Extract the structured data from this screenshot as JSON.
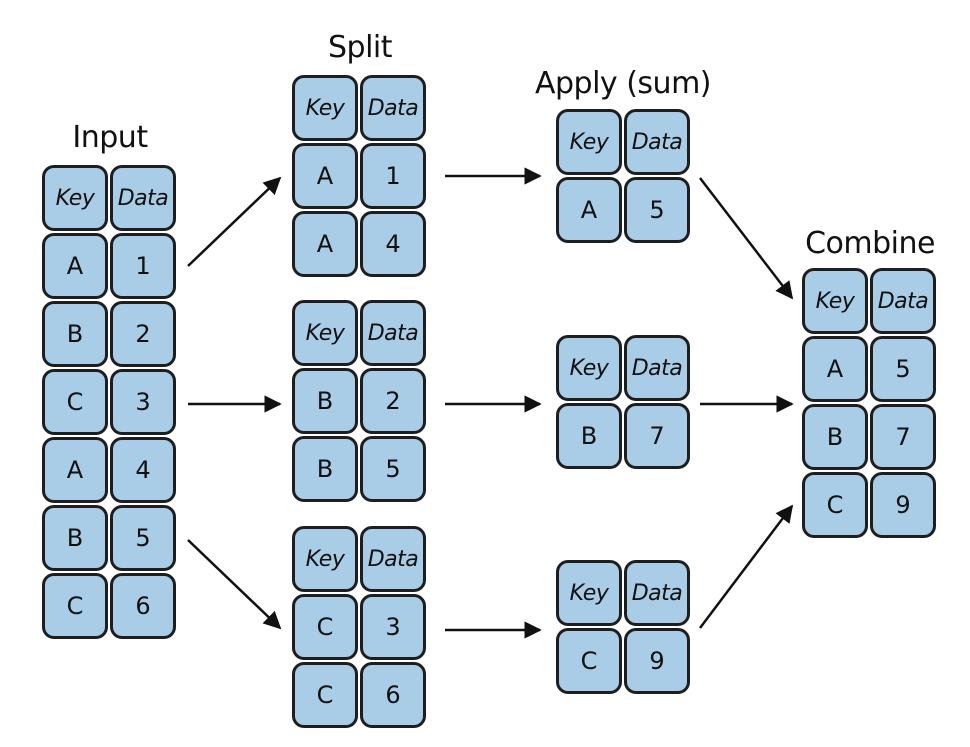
{
  "titles": {
    "input": "Input",
    "split": "Split",
    "apply": "Apply (sum)",
    "combine": "Combine"
  },
  "headers": {
    "key": "Key",
    "data": "Data"
  },
  "input_rows": [
    {
      "key": "A",
      "data": "1"
    },
    {
      "key": "B",
      "data": "2"
    },
    {
      "key": "C",
      "data": "3"
    },
    {
      "key": "A",
      "data": "4"
    },
    {
      "key": "B",
      "data": "5"
    },
    {
      "key": "C",
      "data": "6"
    }
  ],
  "split_groups": [
    [
      {
        "key": "A",
        "data": "1"
      },
      {
        "key": "A",
        "data": "4"
      }
    ],
    [
      {
        "key": "B",
        "data": "2"
      },
      {
        "key": "B",
        "data": "5"
      }
    ],
    [
      {
        "key": "C",
        "data": "3"
      },
      {
        "key": "C",
        "data": "6"
      }
    ]
  ],
  "apply_results": [
    {
      "key": "A",
      "data": "5"
    },
    {
      "key": "B",
      "data": "7"
    },
    {
      "key": "C",
      "data": "9"
    }
  ],
  "combine_rows": [
    {
      "key": "A",
      "data": "5"
    },
    {
      "key": "B",
      "data": "7"
    },
    {
      "key": "C",
      "data": "9"
    }
  ],
  "colors": {
    "cell_fill": "#a9cde6",
    "cell_border": "#1e1e1e",
    "arrow": "#111111"
  }
}
